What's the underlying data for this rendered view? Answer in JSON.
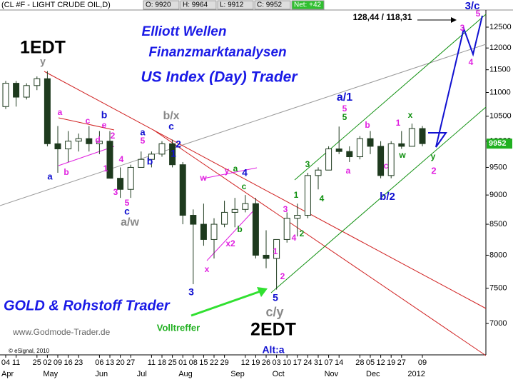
{
  "header": {
    "symbol": "(CL #F - LIGHT CRUDE OIL,D)",
    "open": "O: 9920",
    "high": "H: 9964",
    "low": "L: 9912",
    "close": "C: 9952",
    "net": "Net: +42"
  },
  "titles": [
    "Elliott Wellen",
    "Finanzmarktanalysen",
    "US Index (Day) Trader"
  ],
  "footer": {
    "brand": "GOLD & Rohstoff Trader",
    "url": "www.Godmode-Trader.de",
    "copyright": "© eSignal, 2010"
  },
  "chart_data": {
    "type": "candlestick",
    "log_scale": true,
    "categories": [
      "04",
      "11",
      null,
      "25",
      "02",
      "09",
      "16",
      "23",
      null,
      "06",
      "13",
      "20",
      "27",
      null,
      "11",
      "18",
      "25",
      "01",
      "08",
      "15",
      "22",
      "29",
      null,
      "12",
      "19",
      "26",
      "03",
      "10",
      "17",
      "24",
      "31",
      "07",
      "14",
      null,
      "28",
      "05",
      "12",
      "19",
      "27",
      null,
      "09"
    ],
    "months": [
      "Apr",
      null,
      null,
      null,
      "May",
      null,
      null,
      null,
      null,
      "Jun",
      null,
      null,
      null,
      "Jul",
      null,
      null,
      null,
      "Aug",
      null,
      null,
      null,
      null,
      "Sep",
      null,
      null,
      null,
      "Oct",
      null,
      null,
      null,
      null,
      "Nov",
      null,
      null,
      null,
      "Dec",
      null,
      null,
      null,
      "2012",
      null
    ],
    "open": [
      10700,
      11200,
      10900,
      11150,
      11300,
      9950,
      9850,
      10000,
      10050,
      9950,
      10000,
      9300,
      9100,
      9500,
      9650,
      9750,
      9950,
      9550,
      8650,
      8500,
      8250,
      8500,
      8700,
      8750,
      8850,
      8000,
      7950,
      8250,
      8600,
      8650,
      9350,
      9450,
      9850,
      9800,
      9700,
      10050,
      9900,
      9350,
      9950,
      9900,
      10250
    ],
    "high": [
      11250,
      11250,
      11200,
      11350,
      11470,
      10300,
      10200,
      10150,
      10300,
      10200,
      10200,
      9500,
      9550,
      9800,
      9800,
      10000,
      10030,
      9600,
      8750,
      8850,
      8600,
      8900,
      8950,
      9000,
      8950,
      8400,
      8200,
      8700,
      8850,
      9400,
      9500,
      9900,
      10290,
      9900,
      10100,
      10200,
      10000,
      10000,
      10200,
      10350,
      10300
    ],
    "low": [
      10650,
      10700,
      10850,
      11050,
      9900,
      9400,
      9600,
      9800,
      9800,
      9750,
      9300,
      8950,
      8950,
      9500,
      9500,
      9700,
      9500,
      8500,
      7560,
      8150,
      7950,
      8450,
      8450,
      8700,
      7950,
      7800,
      7480,
      8200,
      8300,
      8600,
      9100,
      9450,
      9750,
      9600,
      9650,
      9750,
      9300,
      9300,
      9850,
      9900,
      9900
    ],
    "close": [
      11200,
      10900,
      11150,
      11300,
      9950,
      9850,
      10000,
      10050,
      9950,
      10000,
      9300,
      9100,
      9500,
      9650,
      9750,
      9950,
      9550,
      8650,
      8500,
      8250,
      8500,
      8700,
      8750,
      8850,
      8000,
      7950,
      8250,
      8600,
      8650,
      9350,
      9450,
      9850,
      9800,
      9700,
      10050,
      9900,
      9350,
      9950,
      9900,
      10250,
      9952
    ],
    "up_color": "#ffffff",
    "down_color": "#1e3a1e",
    "ylim": [
      6583,
      12926
    ],
    "yticks": [
      7000,
      7500,
      8000,
      8500,
      9000,
      9500,
      10000,
      10500,
      11000,
      11500,
      12000,
      12500
    ],
    "last_price": 9952,
    "annotations": [
      {
        "text": "1EDT",
        "color": "#000000"
      },
      {
        "text": "y",
        "color": "#888888"
      },
      {
        "text": "a",
        "color": "#1010d0"
      },
      {
        "text": "b",
        "color": "#e020e0"
      },
      {
        "text": "a",
        "color": "#e020e0"
      },
      {
        "text": "c",
        "color": "#e020e0"
      },
      {
        "text": "b",
        "color": "#1010d0"
      },
      {
        "text": "e",
        "color": "#e020e0"
      },
      {
        "text": "2",
        "color": "#e020e0"
      },
      {
        "text": "d",
        "color": "#e020e0"
      },
      {
        "text": "1",
        "color": "#e020e0"
      },
      {
        "text": "3",
        "color": "#e020e0"
      },
      {
        "text": "4",
        "color": "#e020e0"
      },
      {
        "text": "5",
        "color": "#e020e0"
      },
      {
        "text": "c",
        "color": "#1010d0"
      },
      {
        "text": "a/w",
        "color": "#888888"
      },
      {
        "text": "b/x",
        "color": "#888888"
      },
      {
        "text": "a",
        "color": "#1010d0"
      },
      {
        "text": "5",
        "color": "#e020e0"
      },
      {
        "text": "b",
        "color": "#1010d0"
      },
      {
        "text": "c",
        "color": "#1010d0"
      },
      {
        "text": "2",
        "color": "#1010d0"
      },
      {
        "text": "1",
        "color": "#1010d0"
      },
      {
        "text": "3",
        "color": "#1010d0"
      },
      {
        "text": "4",
        "color": "#1010d0"
      },
      {
        "text": "w",
        "color": "#e020e0"
      },
      {
        "text": "y",
        "color": "#e020e0"
      },
      {
        "text": "a",
        "color": "#109010"
      },
      {
        "text": "c",
        "color": "#109010"
      },
      {
        "text": "b",
        "color": "#109010"
      },
      {
        "text": "x2",
        "color": "#e020e0"
      },
      {
        "text": "x",
        "color": "#e020e0"
      },
      {
        "text": "5",
        "color": "#1010d0"
      },
      {
        "text": "c/y",
        "color": "#888888"
      },
      {
        "text": "2EDT",
        "color": "#000000"
      },
      {
        "text": "Alt:a",
        "color": "#1010d0"
      },
      {
        "text": "1",
        "color": "#e020e0"
      },
      {
        "text": "2",
        "color": "#e020e0"
      },
      {
        "text": "3",
        "color": "#e020e0"
      },
      {
        "text": "4",
        "color": "#e020e0"
      },
      {
        "text": "2",
        "color": "#109010"
      },
      {
        "text": "1",
        "color": "#109010"
      },
      {
        "text": "3",
        "color": "#109010"
      },
      {
        "text": "4",
        "color": "#109010"
      },
      {
        "text": "a/1",
        "color": "#1010d0"
      },
      {
        "text": "5",
        "color": "#e020e0"
      },
      {
        "text": "5",
        "color": "#109010"
      },
      {
        "text": "a",
        "color": "#e020e0"
      },
      {
        "text": "b",
        "color": "#e020e0"
      },
      {
        "text": "c",
        "color": "#e020e0"
      },
      {
        "text": "b/2",
        "color": "#1010d0"
      },
      {
        "text": "1",
        "color": "#e020e0"
      },
      {
        "text": "x",
        "color": "#109010"
      },
      {
        "text": "w",
        "color": "#109010"
      },
      {
        "text": "y",
        "color": "#109010"
      },
      {
        "text": "2",
        "color": "#e020e0"
      },
      {
        "text": "3",
        "color": "#e020e0"
      },
      {
        "text": "4",
        "color": "#e020e0"
      },
      {
        "text": "5",
        "color": "#e020e0"
      },
      {
        "text": "3/c",
        "color": "#1010d0"
      },
      {
        "text": "128,44 / 118,31",
        "color": "#000000"
      },
      {
        "text": "Volltreffer",
        "color": "#20b020"
      }
    ]
  }
}
